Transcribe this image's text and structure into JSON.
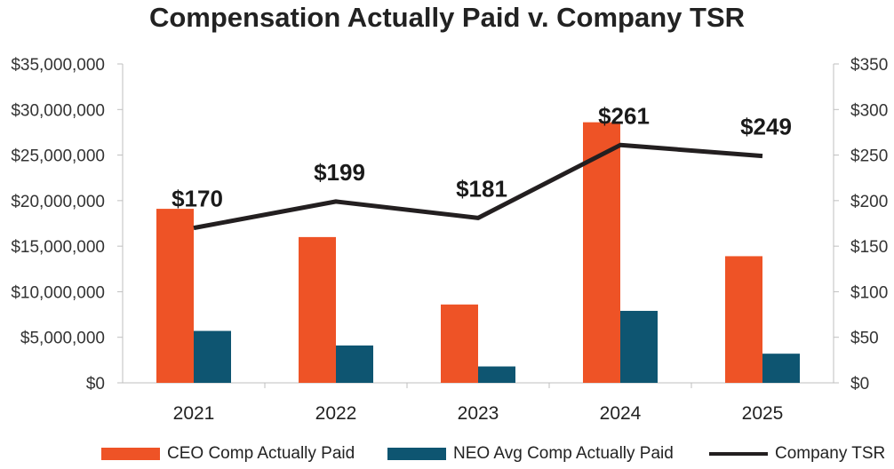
{
  "chart_data": {
    "type": "bar",
    "title": "Compensation Actually Paid v. Company TSR",
    "categories": [
      "2021",
      "2022",
      "2023",
      "2024",
      "2025"
    ],
    "series": [
      {
        "name": "CEO Comp Actually Paid",
        "type": "bar",
        "axis": "left",
        "color": "#EE5326",
        "values": [
          19100000,
          16000000,
          8600000,
          28600000,
          13900000
        ]
      },
      {
        "name": "NEO Avg Comp Actually Paid",
        "type": "bar",
        "axis": "left",
        "color": "#0E5571",
        "values": [
          5700000,
          4100000,
          1800000,
          7900000,
          3200000
        ]
      },
      {
        "name": "Company TSR",
        "type": "line",
        "axis": "right",
        "color": "#231F20",
        "values": [
          170,
          199,
          181,
          261,
          249
        ],
        "data_labels": [
          "$170",
          "$199",
          "$181",
          "$261",
          "$249"
        ]
      }
    ],
    "y_left": {
      "range": [
        0,
        35000000
      ],
      "ticks": [
        0,
        5000000,
        10000000,
        15000000,
        20000000,
        25000000,
        30000000,
        35000000
      ],
      "tick_labels": [
        "$0",
        "$5,000,000",
        "$10,000,000",
        "$15,000,000",
        "$20,000,000",
        "$25,000,000",
        "$30,000,000",
        "$35,000,000"
      ]
    },
    "y_right": {
      "range": [
        0,
        350
      ],
      "ticks": [
        0,
        50,
        100,
        150,
        200,
        250,
        300,
        350
      ],
      "tick_labels": [
        "$0",
        "$50",
        "$100",
        "$150",
        "$200",
        "$250",
        "$300",
        "$350"
      ]
    },
    "grid": false,
    "legend_position": "bottom"
  }
}
